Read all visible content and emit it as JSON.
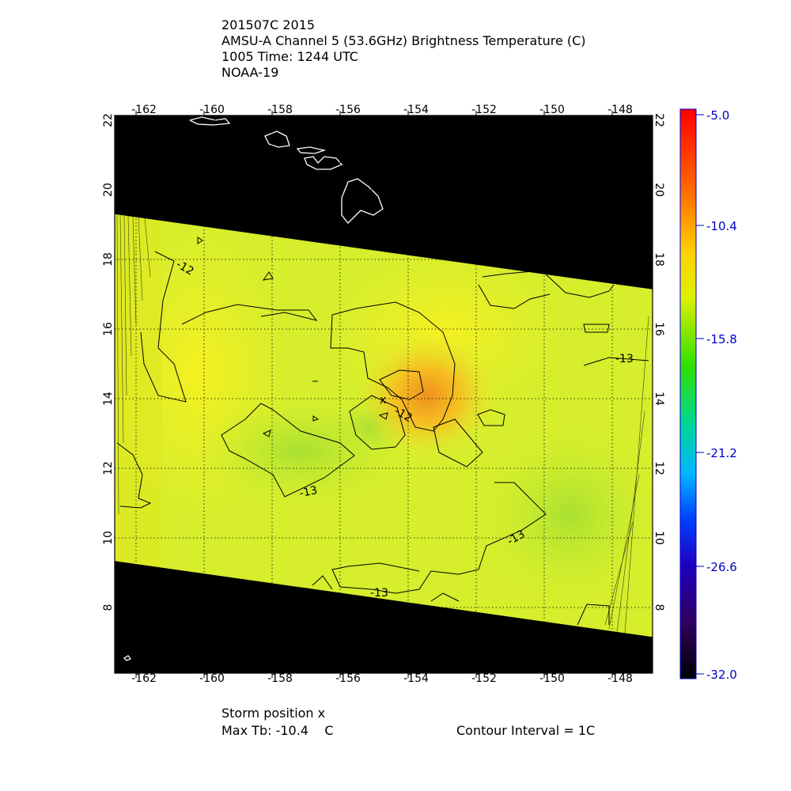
{
  "title": {
    "line1": "201507C 2015",
    "line2": "AMSU-A Channel 5 (53.6GHz) Brightness Temperature (C)",
    "line3": "1005 Time: 1244 UTC",
    "line4": "NOAA-19"
  },
  "map": {
    "lon_ticks": [
      "-162",
      "-160",
      "-158",
      "-156",
      "-154",
      "-152",
      "-150",
      "-148"
    ],
    "lat_ticks": [
      "22",
      "20",
      "18",
      "16",
      "14",
      "12",
      "10",
      "8"
    ],
    "contour_labels": [
      "-12",
      "-12",
      "-13",
      "-13",
      "-13",
      "-13"
    ],
    "storm_marker": "x"
  },
  "colorbar": {
    "labels": [
      "-5.0",
      "-10.4",
      "-15.8",
      "-21.2",
      "-26.6",
      "-32.0"
    ],
    "colors": [
      "#ff0000",
      "#ff8000",
      "#ffff00",
      "#00e000",
      "#00d0ff",
      "#0000ff",
      "#400060",
      "#000000"
    ]
  },
  "colors": {
    "background_swath": "#000000",
    "field_base": "#d4f02a",
    "warm_core": "#f0a020",
    "grid": "#000000",
    "coast": "#ffffff",
    "tick_label": "#0000c8"
  },
  "footer": {
    "storm_position": "Storm position x",
    "max_tb": "Max Tb: -10.4    C",
    "contour_interval": "Contour Interval = 1C"
  }
}
